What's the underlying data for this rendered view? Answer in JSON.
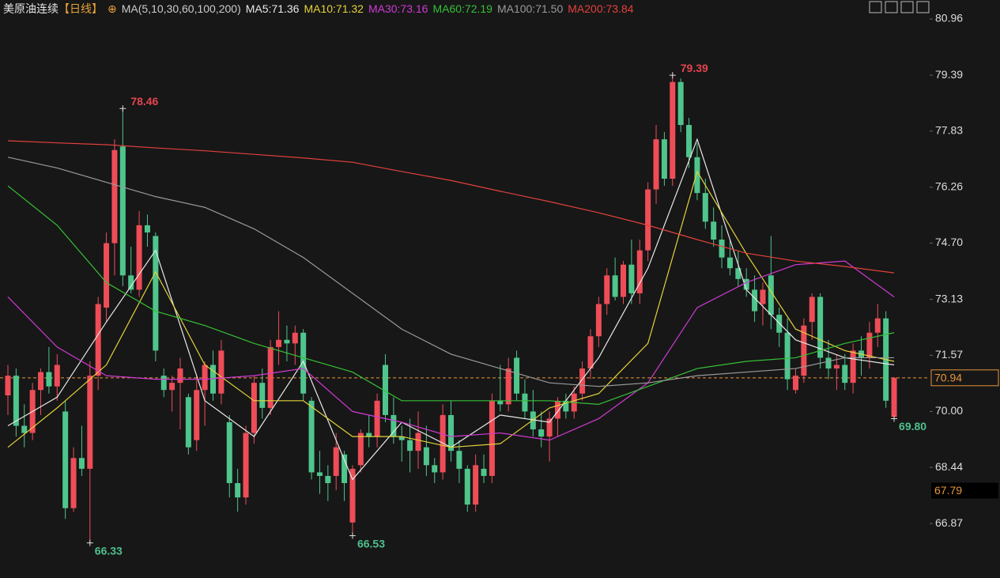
{
  "chart_data": {
    "type": "candlestick",
    "header": {
      "symbol": "美原油连续",
      "period": "【日线】",
      "indicator": "MA(5,10,30,60,100,200)"
    },
    "ylim": [
      65.35,
      81.49
    ],
    "yticks": [
      80.96,
      79.39,
      77.83,
      76.26,
      {
        "value": 74.7,
        "label": "74.70"
      },
      73.13,
      71.57,
      {
        "value": 70,
        "label": "70.00"
      },
      68.44,
      66.87
    ],
    "up_color": "#ee4d58",
    "down_color": "#4fc58c",
    "open": [
      70.45,
      71.0,
      69.6,
      69.4,
      70.6,
      71.1,
      70.7,
      70.0,
      67.3,
      68.7,
      68.4,
      71.0,
      72.9,
      74.7,
      77.4,
      73.8,
      73.4,
      75.2,
      74.9,
      71.0,
      70.6,
      70.8,
      70.4,
      69.2,
      70.6,
      71.3,
      70.5,
      69.7,
      68.0,
      67.6,
      69.4,
      70.8,
      70.1,
      71.8,
      72.0,
      71.9,
      72.2,
      70.3,
      68.3,
      68.2,
      68.2,
      68.8,
      66.9,
      68.5,
      69.4,
      69.3,
      71.3,
      69.9,
      69.3,
      69.2,
      68.9,
      69.0,
      68.5,
      68.3,
      69.9,
      68.9,
      68.4,
      67.4,
      68.4,
      68.2,
      70.3,
      70.2,
      71.5,
      70.5,
      70.0,
      69.5,
      69.3,
      69.8,
      70.3,
      70.0,
      70.5,
      71.2,
      72.1,
      73.0,
      73.8,
      73.2,
      74.1,
      73.3,
      74.5,
      76.2,
      77.6,
      76.5,
      79.2,
      78.0,
      77.1,
      76.1,
      75.3,
      74.8,
      74.3,
      74.0,
      73.7,
      73.4,
      73.0,
      73.8,
      72.7,
      72.2,
      70.6,
      71.0,
      72.5,
      73.2,
      71.5,
      71.2,
      71.3,
      70.8,
      71.7,
      71.5,
      72.2,
      72.6,
      69.85
    ],
    "high": [
      71.3,
      71.2,
      70.2,
      70.8,
      71.2,
      71.8,
      71.6,
      70.3,
      69.0,
      69.6,
      71.4,
      73.2,
      75.0,
      77.6,
      78.46,
      74.6,
      75.6,
      75.5,
      75.0,
      71.2,
      71.0,
      71.5,
      70.5,
      71.0,
      71.4,
      71.7,
      72.0,
      69.9,
      68.4,
      69.6,
      71.0,
      71.2,
      72.0,
      72.8,
      72.4,
      72.4,
      72.3,
      70.4,
      68.9,
      68.5,
      69.4,
      68.9,
      68.5,
      69.5,
      69.9,
      70.5,
      71.6,
      70.4,
      69.6,
      69.8,
      70.0,
      69.6,
      68.7,
      70.2,
      70.3,
      69.2,
      68.5,
      68.8,
      68.8,
      70.5,
      71.3,
      71.5,
      71.7,
      70.9,
      70.6,
      70.0,
      70.0,
      70.4,
      70.5,
      70.7,
      71.4,
      72.3,
      73.2,
      74.0,
      74.3,
      74.2,
      74.8,
      74.8,
      76.4,
      78.0,
      77.8,
      79.39,
      79.3,
      78.2,
      77.5,
      76.5,
      75.7,
      75.2,
      74.8,
      74.5,
      74.0,
      73.8,
      73.6,
      74.9,
      72.9,
      72.6,
      71.2,
      72.6,
      73.3,
      73.3,
      72.0,
      71.6,
      71.6,
      71.9,
      72.1,
      72.5,
      73.0,
      72.8,
      70.96
    ],
    "low": [
      69.9,
      69.3,
      69.0,
      69.2,
      69.9,
      70.5,
      70.3,
      67.0,
      67.2,
      68.2,
      66.33,
      70.6,
      72.5,
      73.8,
      73.5,
      73.3,
      73.2,
      74.6,
      71.4,
      70.4,
      70.0,
      69.5,
      68.8,
      68.9,
      69.6,
      70.3,
      70.2,
      67.6,
      67.2,
      67.4,
      69.1,
      69.8,
      69.9,
      71.3,
      71.4,
      71.3,
      70.3,
      68.1,
      67.7,
      67.5,
      67.8,
      67.5,
      66.53,
      68.3,
      69.0,
      69.0,
      69.7,
      69.1,
      68.6,
      68.3,
      68.4,
      68.2,
      68.0,
      68.1,
      68.6,
      68.0,
      67.2,
      67.2,
      68.0,
      68.0,
      70.0,
      70.0,
      70.3,
      69.8,
      69.3,
      69.0,
      68.6,
      69.3,
      69.8,
      69.8,
      70.3,
      70.9,
      71.8,
      72.7,
      73.1,
      73.0,
      73.0,
      73.0,
      74.2,
      75.8,
      76.3,
      76.3,
      77.8,
      76.8,
      75.9,
      75.1,
      74.6,
      74.0,
      73.8,
      73.5,
      73.2,
      72.5,
      72.4,
      72.3,
      71.8,
      70.6,
      70.5,
      70.8,
      72.0,
      71.2,
      70.9,
      70.6,
      70.6,
      70.5,
      71.0,
      71.2,
      71.8,
      70.1,
      69.8
    ],
    "close": [
      71.0,
      69.6,
      69.4,
      70.6,
      71.1,
      70.7,
      71.3,
      67.3,
      68.7,
      68.4,
      71.0,
      73.0,
      74.7,
      77.3,
      73.8,
      73.4,
      75.2,
      75.0,
      71.7,
      70.6,
      70.8,
      71.2,
      69.0,
      70.6,
      71.3,
      70.5,
      71.7,
      68.0,
      67.6,
      69.4,
      70.8,
      70.1,
      71.8,
      72.0,
      71.9,
      72.2,
      70.5,
      68.3,
      68.2,
      68.0,
      69.0,
      68.0,
      68.4,
      69.4,
      69.3,
      70.3,
      69.9,
      69.3,
      69.2,
      68.9,
      69.4,
      68.5,
      68.3,
      69.9,
      68.9,
      68.4,
      67.4,
      68.5,
      68.2,
      70.3,
      70.2,
      71.2,
      70.5,
      70.0,
      69.5,
      69.3,
      69.8,
      70.3,
      70.0,
      70.5,
      71.2,
      72.1,
      73.0,
      73.8,
      73.2,
      74.1,
      73.3,
      74.5,
      76.2,
      77.6,
      76.5,
      79.2,
      78.0,
      77.1,
      76.1,
      75.3,
      74.8,
      74.3,
      74.0,
      73.7,
      73.4,
      72.8,
      73.4,
      72.7,
      72.2,
      70.9,
      71.0,
      72.4,
      73.2,
      71.5,
      71.2,
      71.3,
      70.8,
      71.7,
      71.5,
      72.2,
      72.6,
      70.3,
      70.94
    ],
    "ma_x": [
      0,
      6,
      12,
      18,
      24,
      30,
      36,
      42,
      48,
      54,
      60,
      66,
      72,
      78,
      84,
      90,
      96,
      102,
      108
    ],
    "ma_series": [
      {
        "name": "MA5:71.36",
        "color": "#e8e8e8",
        "values": [
          69.6,
          70.4,
          72.5,
          74.5,
          70.3,
          69.3,
          71.4,
          68.1,
          69.7,
          69.0,
          69.9,
          69.7,
          71.5,
          74.0,
          77.6,
          73.4,
          72.0,
          71.5,
          71.3
        ]
      },
      {
        "name": "MA10:71.32",
        "color": "#e3d23a",
        "values": [
          69.0,
          70.1,
          71.3,
          73.9,
          71.3,
          70.3,
          70.3,
          69.3,
          69.3,
          69.0,
          69.1,
          70.1,
          70.5,
          71.9,
          76.7,
          74.4,
          72.3,
          71.7,
          71.4
        ]
      },
      {
        "name": "MA30:73.16",
        "color": "#d03ad3",
        "values": [
          73.2,
          71.8,
          71.0,
          70.9,
          70.9,
          71.0,
          71.2,
          70.0,
          69.7,
          69.3,
          69.4,
          69.2,
          69.8,
          70.8,
          72.9,
          73.6,
          74.1,
          74.2,
          73.2
        ]
      },
      {
        "name": "MA60:72.19",
        "color": "#36c036",
        "values": [
          76.3,
          75.2,
          73.6,
          72.8,
          72.4,
          71.9,
          71.5,
          71.1,
          70.3,
          70.3,
          70.3,
          70.3,
          70.2,
          70.7,
          71.2,
          71.4,
          71.5,
          71.9,
          72.2
        ]
      },
      {
        "name": "MA100:71.50",
        "color": "#9a9a9a",
        "values": [
          77.1,
          76.8,
          76.4,
          76.0,
          75.7,
          75.1,
          74.3,
          73.3,
          72.3,
          71.6,
          71.2,
          70.8,
          70.7,
          70.8,
          71.0,
          71.1,
          71.2,
          71.5,
          71.5
        ]
      },
      {
        "name": "MA200:73.84",
        "color": "#e2413c",
        "values": [
          77.56,
          77.5,
          77.45,
          77.36,
          77.28,
          77.18,
          77.08,
          76.96,
          76.7,
          76.45,
          76.15,
          75.86,
          75.55,
          75.2,
          74.8,
          74.42,
          74.2,
          74.05,
          73.87
        ]
      }
    ],
    "high_labels": [
      {
        "index": 14,
        "value": 78.46
      },
      {
        "index": 81,
        "value": 79.39
      }
    ],
    "low_labels": [
      {
        "index": 10,
        "value": 66.33
      },
      {
        "index": 42,
        "value": 66.53
      },
      {
        "index": 108,
        "value": 69.8,
        "label": "69.80"
      }
    ],
    "last_price": 70.94,
    "cursor_price": 67.79
  }
}
